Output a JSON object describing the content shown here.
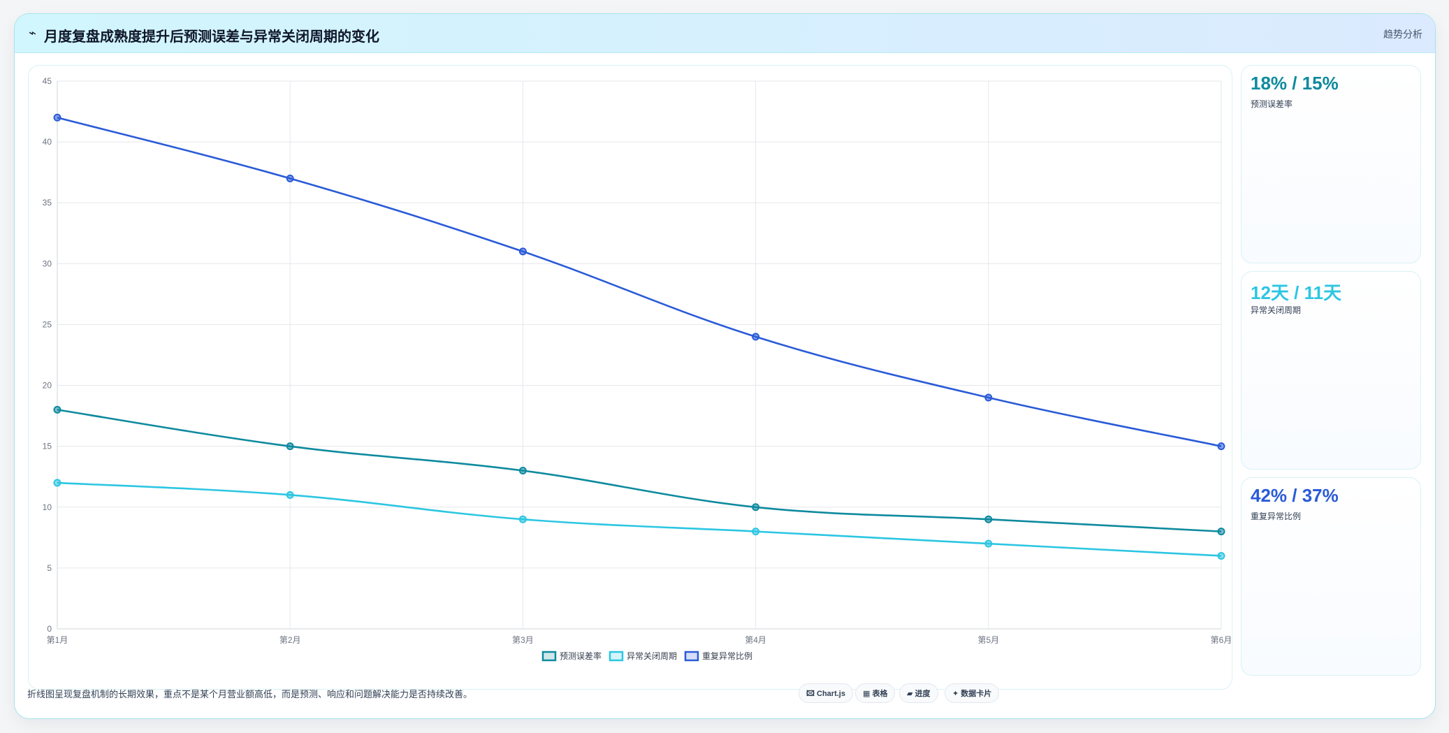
{
  "header": {
    "icon": "trend-icon",
    "icon_glyph": "⌁",
    "title": "月度复盘成熟度提升后预测误差与异常关闭周期的变化",
    "tag": "趋势分析"
  },
  "chart_data": {
    "type": "line",
    "categories": [
      "第1月",
      "第2月",
      "第3月",
      "第4月",
      "第5月",
      "第6月"
    ],
    "series": [
      {
        "name": "预测误差率",
        "values": [
          18,
          15,
          13,
          10,
          9,
          8
        ],
        "color": "#0e8a9e"
      },
      {
        "name": "异常关闭周期",
        "values": [
          12,
          11,
          9,
          8,
          7,
          6
        ],
        "color": "#2cc6e2"
      },
      {
        "name": "重复异常比例",
        "values": [
          42,
          37,
          31,
          24,
          19,
          15
        ],
        "color": "#2a5bd7"
      }
    ],
    "ylim": [
      0,
      45
    ],
    "yticks": [
      0,
      5,
      10,
      15,
      20,
      25,
      30,
      35,
      40,
      45
    ],
    "grid": true,
    "legend": "bottom"
  },
  "cards": [
    {
      "value": "18% / 15%",
      "label": "预测误差率",
      "color": "#0e8a9e"
    },
    {
      "value": "12天 / 11天",
      "label": "异常关闭周期",
      "color": "#2cc6e2"
    },
    {
      "value": "42% / 37%",
      "label": "重复异常比例",
      "color": "#2a5bd7"
    }
  ],
  "footnote": "折线图呈现复盘机制的长期效果，重点不是某个月营业额高低，而是预测、响应和问题解决能力是否持续改善。",
  "pills": [
    "🖾 Chart.js",
    "▦ 表格",
    "▰ 进度",
    "✦ 数据卡片"
  ]
}
